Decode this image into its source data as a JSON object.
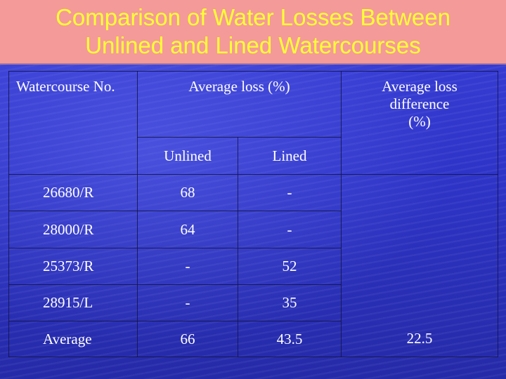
{
  "slide": {
    "title_line1": "Comparison of Water Losses Between",
    "title_line2": "Unlined and Lined Watercourses"
  },
  "table": {
    "headers": {
      "watercourse": "Watercourse No.",
      "average_loss": "Average loss (%)",
      "unlined": "Unlined",
      "lined": "Lined",
      "difference_line1": "Average loss",
      "difference_line2": "difference",
      "difference_line3": "(%)"
    },
    "rows": [
      {
        "watercourse": "26680/R",
        "unlined": "68",
        "lined": "-"
      },
      {
        "watercourse": "28000/R",
        "unlined": "64",
        "lined": "-"
      },
      {
        "watercourse": "25373/R",
        "unlined": "-",
        "lined": "52"
      },
      {
        "watercourse": "28915/L",
        "unlined": "-",
        "lined": "35"
      }
    ],
    "average": {
      "label": "Average",
      "unlined": "66",
      "lined": "43.5",
      "difference": "22.5"
    }
  }
}
